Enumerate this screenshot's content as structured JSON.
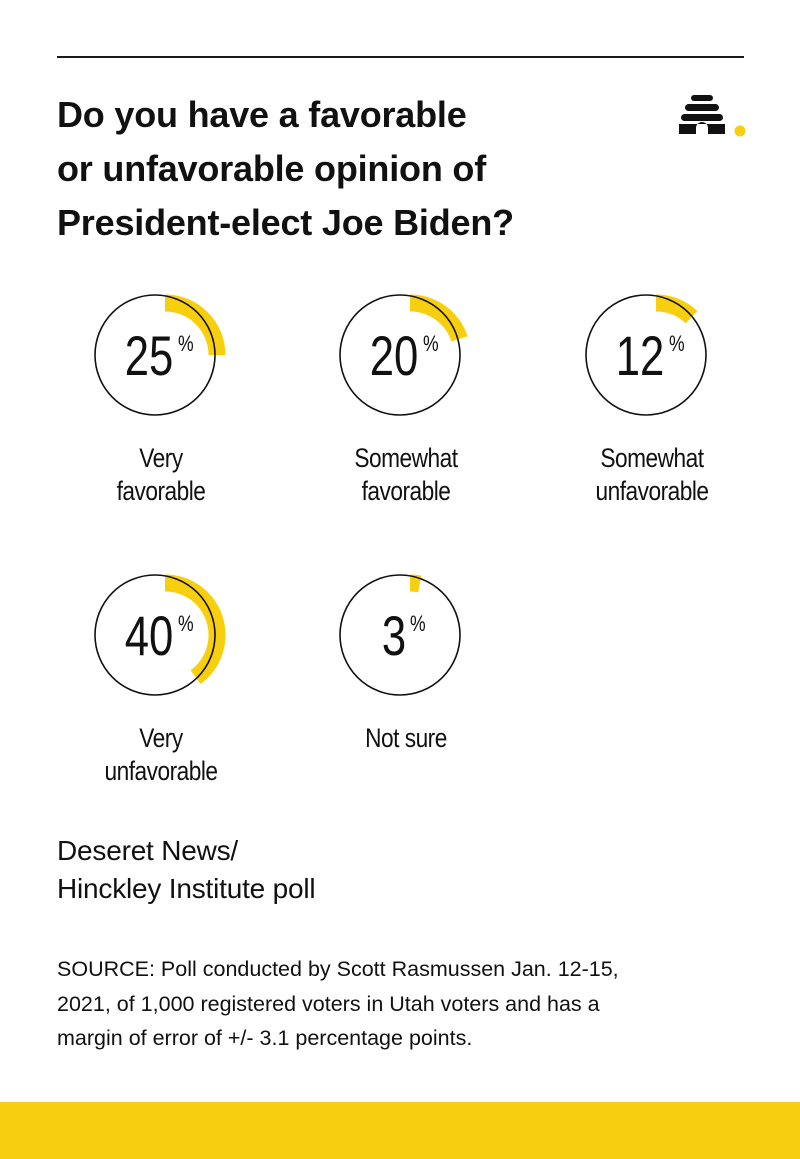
{
  "title_lines": [
    "Do you have a favorable",
    "or unfavorable opinion of",
    "President-elect Joe Biden?"
  ],
  "subtitle_lines": [
    "Deseret News/",
    "Hinckley Institute poll"
  ],
  "source_lines": [
    "SOURCE: Poll conducted by Scott Rasmussen Jan. 12-15,",
    "2021, of 1,000 registered voters in Utah voters and has a",
    "margin of error of +/- 3.1 percentage points."
  ],
  "colors": {
    "accent": "#f8cf0f",
    "text": "#111111",
    "rule": "#1a1a1a",
    "bar": "#f8cf0f"
  },
  "logo_icon": "beehive-icon",
  "chart_data": {
    "type": "pie",
    "percent_sign": "%",
    "items": [
      {
        "value": 25,
        "label_lines": [
          "Very",
          "favorable"
        ]
      },
      {
        "value": 20,
        "label_lines": [
          "Somewhat",
          "favorable"
        ]
      },
      {
        "value": 12,
        "label_lines": [
          "Somewhat",
          "unfavorable"
        ]
      },
      {
        "value": 40,
        "label_lines": [
          "Very",
          "unfavorable"
        ]
      },
      {
        "value": 3,
        "label_lines": [
          "Not sure"
        ]
      }
    ]
  }
}
